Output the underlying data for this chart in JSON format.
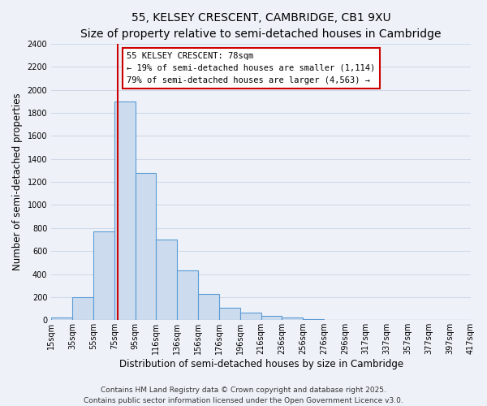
{
  "title": "55, KELSEY CRESCENT, CAMBRIDGE, CB1 9XU",
  "subtitle": "Size of property relative to semi-detached houses in Cambridge",
  "xlabel": "Distribution of semi-detached houses by size in Cambridge",
  "ylabel": "Number of semi-detached properties",
  "footer_line1": "Contains HM Land Registry data © Crown copyright and database right 2025.",
  "footer_line2": "Contains public sector information licensed under the Open Government Licence v3.0.",
  "bin_labels": [
    "15sqm",
    "35sqm",
    "55sqm",
    "75sqm",
    "95sqm",
    "116sqm",
    "136sqm",
    "156sqm",
    "176sqm",
    "196sqm",
    "216sqm",
    "236sqm",
    "256sqm",
    "276sqm",
    "296sqm",
    "317sqm",
    "337sqm",
    "357sqm",
    "377sqm",
    "397sqm",
    "417sqm"
  ],
  "bar_values": [
    25,
    200,
    770,
    1900,
    1280,
    700,
    435,
    230,
    110,
    65,
    35,
    20,
    10,
    5,
    5,
    3,
    2,
    1,
    1,
    1
  ],
  "bar_color": "#ccdcee",
  "bar_edge_color": "#5b9bd5",
  "property_line_label": "55 KELSEY CRESCENT: 78sqm",
  "annotation_line1": "← 19% of semi-detached houses are smaller (1,114)",
  "annotation_line2": "79% of semi-detached houses are larger (4,563) →",
  "annotation_box_color": "#ffffff",
  "annotation_box_edge": "#cc0000",
  "vline_color": "#cc0000",
  "vline_x": 3.15,
  "ylim": [
    0,
    2400
  ],
  "yticks": [
    0,
    200,
    400,
    600,
    800,
    1000,
    1200,
    1400,
    1600,
    1800,
    2000,
    2200,
    2400
  ],
  "bg_color": "#eef2f8",
  "grid_color": "#d0d8e8",
  "title_fontsize": 10,
  "subtitle_fontsize": 9,
  "axis_label_fontsize": 8.5,
  "tick_fontsize": 7,
  "footer_fontsize": 6.5
}
